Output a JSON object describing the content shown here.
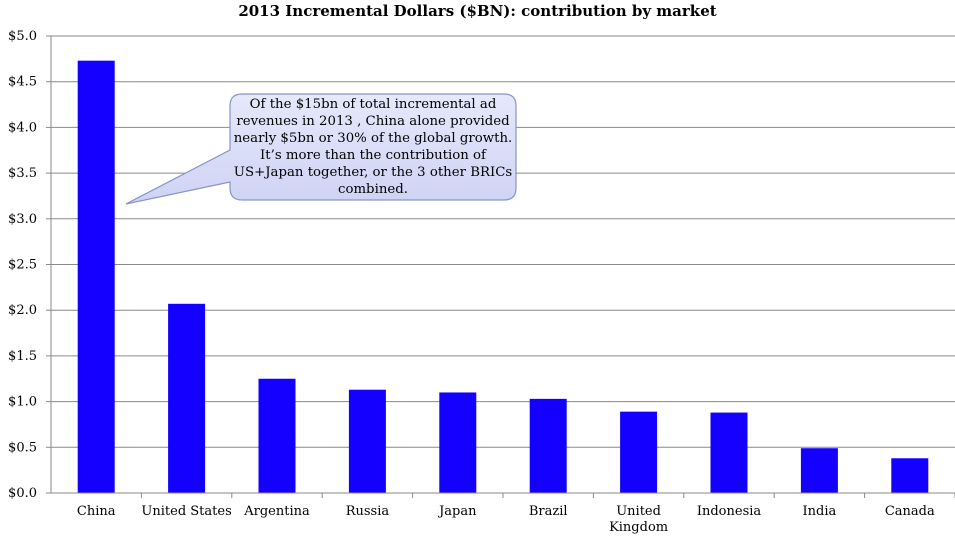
{
  "chart_data": {
    "type": "bar",
    "title": "2013 Incremental Dollars ($BN): contribution by market",
    "xlabel": "",
    "ylabel": "",
    "ylim": [
      0,
      5
    ],
    "yticks": [
      "$0.0",
      "$0.5",
      "$1.0",
      "$1.5",
      "$2.0",
      "$2.5",
      "$3.0",
      "$3.5",
      "$4.0",
      "$4.5",
      "$5.0"
    ],
    "categories": [
      "China",
      "United States",
      "Argentina",
      "Russia",
      "Japan",
      "Brazil",
      "United Kingdom",
      "Indonesia",
      "India",
      "Canada"
    ],
    "values": [
      4.73,
      2.07,
      1.25,
      1.13,
      1.1,
      1.03,
      0.89,
      0.88,
      0.49,
      0.38
    ],
    "bar_color": "#1400ff",
    "grid": true,
    "annotation": "Of the $15bn of total incremental ad revenues in 2013 , China alone provided nearly $5bn or 30% of the global growth. It’s more than the contribution of US+Japan together, or the 3 other BRICs combined."
  }
}
